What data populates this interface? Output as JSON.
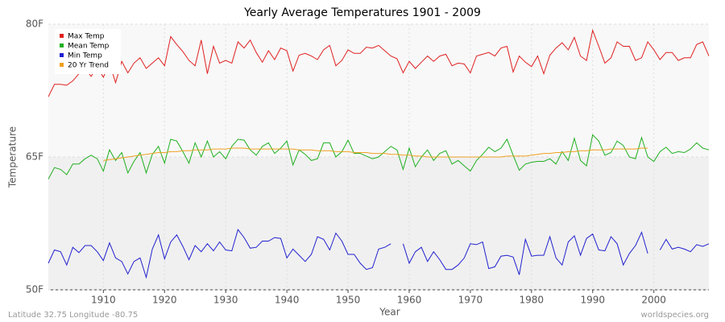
{
  "chart_data": {
    "type": "line",
    "title": "Yearly Average Temperatures 1901 - 2009",
    "xlabel": "Year",
    "ylabel": "Temperature",
    "footer_left": "Latitude 32.75 Longitude -80.75",
    "footer_right": "worldspecies.org",
    "legend": "top-left",
    "grid": true,
    "x": [
      1901,
      1902,
      1903,
      1904,
      1905,
      1906,
      1907,
      1908,
      1909,
      1910,
      1911,
      1912,
      1913,
      1914,
      1915,
      1916,
      1917,
      1918,
      1919,
      1920,
      1921,
      1922,
      1923,
      1924,
      1925,
      1926,
      1927,
      1928,
      1929,
      1930,
      1931,
      1932,
      1933,
      1934,
      1935,
      1936,
      1937,
      1938,
      1939,
      1940,
      1941,
      1942,
      1943,
      1944,
      1945,
      1946,
      1947,
      1948,
      1949,
      1950,
      1951,
      1952,
      1953,
      1954,
      1955,
      1956,
      1957,
      1958,
      1959,
      1960,
      1961,
      1962,
      1963,
      1964,
      1965,
      1966,
      1967,
      1968,
      1969,
      1970,
      1971,
      1972,
      1973,
      1974,
      1975,
      1976,
      1977,
      1978,
      1979,
      1980,
      1981,
      1982,
      1983,
      1984,
      1985,
      1986,
      1987,
      1988,
      1989,
      1990,
      1991,
      1992,
      1993,
      1994,
      1995,
      1996,
      1997,
      1998,
      1999,
      2000,
      2001,
      2002,
      2003,
      2004,
      2005,
      2006,
      2007,
      2008,
      2009
    ],
    "xlim": [
      1901,
      2009
    ],
    "xticks": [
      1910,
      1920,
      1930,
      1940,
      1950,
      1960,
      1970,
      1980,
      1990,
      2000
    ],
    "ylim": [
      50,
      80
    ],
    "yticks": [
      {
        "value": 50,
        "label": "50F"
      },
      {
        "value": 65,
        "label": "65F"
      },
      {
        "value": 80,
        "label": "80F"
      }
    ],
    "series": [
      {
        "name": "Max Temp",
        "color": "#e02020",
        "values": [
          71.8,
          73.2,
          73.2,
          73.1,
          73.6,
          74.4,
          75.0,
          74.1,
          75.2,
          74.0,
          75.6,
          73.4,
          75.8,
          74.5,
          75.6,
          76.2,
          75.0,
          75.6,
          76.2,
          75.3,
          78.6,
          77.7,
          76.9,
          75.9,
          75.3,
          78.2,
          74.4,
          77.5,
          75.6,
          75.9,
          75.6,
          78.0,
          77.3,
          78.2,
          76.8,
          75.7,
          77.0,
          76.0,
          77.3,
          77.0,
          74.7,
          76.5,
          76.7,
          76.4,
          76.0,
          77.1,
          77.6,
          75.3,
          75.9,
          77.1,
          76.7,
          76.7,
          77.4,
          77.3,
          77.6,
          77.0,
          76.4,
          76.1,
          74.5,
          75.8,
          75.0,
          75.7,
          76.4,
          75.8,
          76.4,
          76.6,
          75.3,
          75.6,
          75.5,
          74.5,
          76.4,
          76.6,
          76.8,
          76.4,
          77.3,
          77.5,
          74.6,
          76.4,
          75.7,
          75.2,
          76.4,
          74.4,
          76.5,
          77.3,
          77.9,
          77.1,
          78.5,
          76.4,
          75.9,
          79.3,
          77.5,
          75.6,
          76.2,
          78.0,
          77.5,
          77.5,
          75.9,
          76.2,
          78.0,
          77.1,
          76.0,
          76.8,
          76.8,
          75.9,
          76.2,
          76.2,
          77.7,
          78.0,
          76.4
        ]
      },
      {
        "name": "Mean Temp",
        "color": "#20b020",
        "values": [
          62.5,
          63.8,
          63.6,
          63.0,
          64.2,
          64.2,
          64.8,
          65.2,
          64.8,
          63.4,
          65.8,
          64.6,
          65.5,
          63.2,
          64.5,
          65.5,
          63.2,
          65.3,
          66.2,
          64.3,
          67.0,
          66.8,
          65.6,
          64.3,
          66.6,
          65.0,
          66.8,
          65.0,
          65.6,
          64.8,
          66.2,
          67.0,
          66.9,
          65.8,
          65.2,
          66.2,
          66.6,
          65.4,
          66.0,
          66.8,
          64.1,
          65.8,
          65.3,
          64.6,
          64.8,
          66.6,
          66.6,
          65.0,
          65.6,
          66.9,
          65.4,
          65.4,
          65.1,
          64.8,
          65.0,
          65.6,
          66.2,
          65.8,
          63.6,
          66.0,
          63.9,
          65.0,
          65.8,
          64.6,
          65.4,
          65.7,
          64.2,
          64.6,
          64.0,
          63.4,
          64.6,
          65.3,
          66.1,
          65.6,
          66.0,
          67.0,
          65.2,
          63.5,
          64.2,
          64.4,
          64.5,
          64.5,
          64.8,
          64.2,
          65.6,
          64.6,
          67.1,
          64.6,
          64.0,
          67.5,
          66.8,
          65.2,
          65.5,
          66.8,
          66.3,
          65.0,
          64.8,
          67.2,
          65.0,
          64.5,
          65.6,
          66.1,
          65.4,
          65.6,
          65.5,
          65.9,
          66.6,
          66.0,
          65.8
        ]
      },
      {
        "name": "Min Temp",
        "color": "#2020d0",
        "values": [
          53.0,
          54.5,
          54.3,
          52.8,
          54.8,
          54.2,
          55.0,
          55.0,
          54.3,
          53.3,
          55.3,
          53.6,
          53.2,
          51.8,
          53.2,
          53.6,
          51.4,
          54.6,
          56.2,
          53.5,
          55.4,
          56.2,
          54.9,
          53.4,
          55.0,
          54.3,
          55.2,
          54.4,
          55.4,
          54.5,
          54.4,
          56.8,
          55.9,
          54.7,
          54.8,
          55.5,
          55.5,
          55.9,
          55.8,
          53.6,
          54.6,
          53.9,
          53.2,
          54.0,
          56.0,
          55.7,
          54.5,
          56.4,
          55.5,
          54.0,
          54.0,
          53.0,
          52.3,
          52.5,
          54.6,
          54.8,
          55.2,
          null,
          55.2,
          53.0,
          54.3,
          54.8,
          53.2,
          54.3,
          53.4,
          52.3,
          52.3,
          52.8,
          53.6,
          55.2,
          55.1,
          55.4,
          52.4,
          52.6,
          53.8,
          53.9,
          53.7,
          51.7,
          55.7,
          53.8,
          53.9,
          53.9,
          56.0,
          53.6,
          52.8,
          55.4,
          56.1,
          53.9,
          55.8,
          56.3,
          54.5,
          54.4,
          56.0,
          55.2,
          52.8,
          54.1,
          55.0,
          56.5,
          54.1,
          null,
          54.5,
          55.7,
          54.6,
          54.8,
          54.6,
          54.3,
          55.1,
          54.9,
          55.2
        ]
      },
      {
        "name": "20 Yr Trend",
        "color": "#f0a020",
        "values": [
          null,
          null,
          null,
          null,
          null,
          null,
          null,
          null,
          null,
          64.6,
          64.7,
          64.8,
          64.9,
          65.0,
          65.1,
          65.2,
          65.3,
          65.4,
          65.5,
          65.5,
          65.6,
          65.6,
          65.7,
          65.7,
          65.8,
          65.8,
          65.8,
          65.9,
          65.9,
          65.9,
          66.0,
          66.0,
          66.0,
          65.9,
          65.9,
          65.9,
          65.9,
          65.9,
          65.9,
          65.9,
          65.9,
          65.8,
          65.8,
          65.8,
          65.7,
          65.7,
          65.7,
          65.6,
          65.6,
          65.6,
          65.5,
          65.5,
          65.5,
          65.4,
          65.4,
          65.4,
          65.3,
          65.3,
          65.2,
          65.2,
          65.1,
          65.1,
          65.0,
          65.0,
          65.0,
          65.0,
          65.0,
          65.0,
          65.0,
          65.0,
          65.0,
          65.0,
          65.0,
          65.0,
          65.0,
          65.1,
          65.1,
          65.1,
          65.1,
          65.2,
          65.3,
          65.4,
          65.4,
          65.5,
          65.5,
          65.6,
          65.6,
          65.7,
          65.7,
          65.8,
          65.8,
          65.8,
          65.9,
          65.9,
          65.9,
          65.9,
          65.9,
          66.0,
          66.0,
          null,
          null,
          null,
          null,
          null,
          null,
          null,
          null,
          null,
          null
        ]
      }
    ]
  }
}
